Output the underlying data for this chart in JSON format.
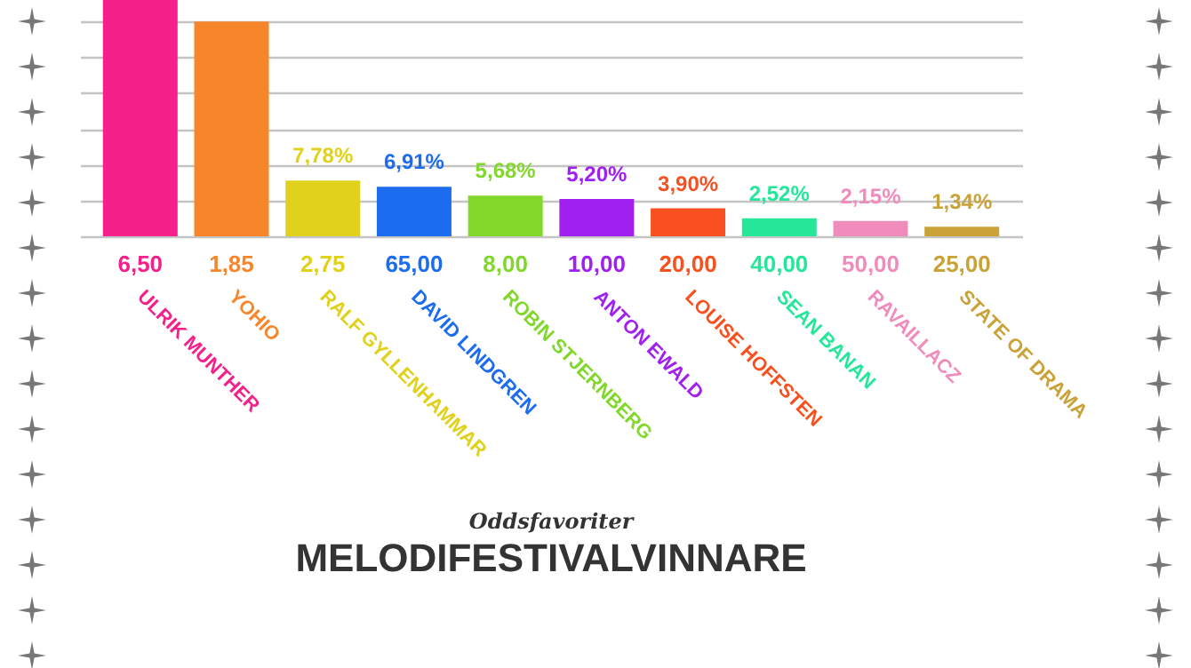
{
  "chart_data": {
    "type": "bar",
    "title": "Oddsfavoriter",
    "subtitle": "MELODIFESTIVALVINNARE",
    "categories": [
      "ULRIK MUNTHER",
      "YOHIO",
      "RALF GYLLENHAMMAR",
      "DAVID LINDGREN",
      "ROBIN STJERNBERG",
      "ANTON EWALD",
      "LOUISE HOFFSTEN",
      "SEAN BANAN",
      "RAVAILLACZ",
      "STATE OF DRAMA"
    ],
    "values": [
      33,
      30,
      7.78,
      6.91,
      5.68,
      5.2,
      3.9,
      2.52,
      2.15,
      1.34
    ],
    "value_labels": [
      null,
      null,
      "7,78%",
      "6,91%",
      "5,68%",
      "5,20%",
      "3,90%",
      "2,52%",
      "2,15%",
      "1,34%"
    ],
    "colors": [
      "#f5208a",
      "#f7862a",
      "#e0d21c",
      "#1c6cf0",
      "#82d82a",
      "#a020f0",
      "#f8501e",
      "#26e69a",
      "#f08cbc",
      "#c9a238"
    ],
    "annotations": [
      {
        "text": "6,50",
        "x": "ULRIK MUNTHER",
        "y": 0
      },
      {
        "text": "1,85",
        "x": "YOHIO",
        "y": 0
      },
      {
        "text": "2,75",
        "x": "RALF GYLLENHAMMAR",
        "y": 0
      },
      {
        "text": "65,00",
        "x": "DAVID LINDGREN",
        "y": 0
      },
      {
        "text": "8,00",
        "x": "ROBIN STJERNBERG",
        "y": 0
      },
      {
        "text": "10,00",
        "x": "ANTON EWALD",
        "y": 0
      },
      {
        "text": "20,00",
        "x": "LOUISE HOFFSTEN",
        "y": 0
      },
      {
        "text": "40,00",
        "x": "SEAN BANAN",
        "y": 0
      },
      {
        "text": "50,00",
        "x": "RAVAILLACZ",
        "y": 0
      },
      {
        "text": "25,00",
        "x": "STATE OF DRAMA",
        "y": 0
      }
    ],
    "ylim": [
      0,
      33
    ],
    "yticks": [
      {
        "value": 0,
        "label": null
      },
      {
        "value": 5,
        "label": null
      },
      {
        "value": 10,
        "label": null
      },
      {
        "value": 15,
        "label": null
      },
      {
        "value": 20,
        "label": null
      },
      {
        "value": 25,
        "label": null
      },
      {
        "value": 30,
        "label": null
      }
    ],
    "grid": "y",
    "tick_labels": "x"
  }
}
